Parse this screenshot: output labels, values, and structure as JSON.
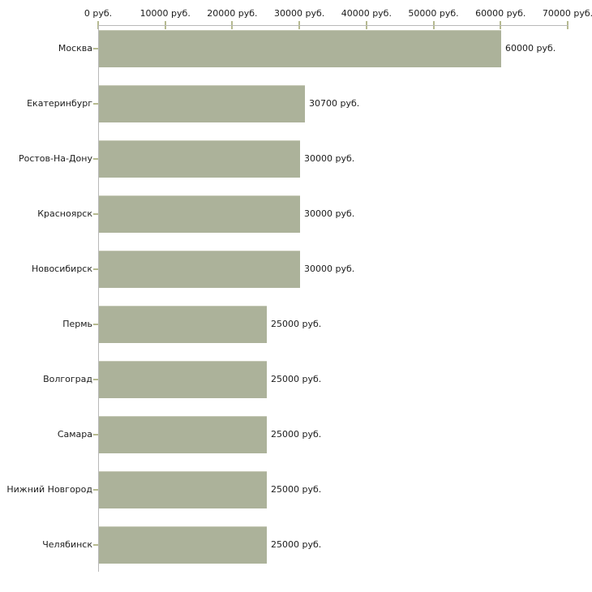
{
  "chart_data": {
    "type": "bar",
    "orientation": "horizontal",
    "title": "",
    "categories": [
      "Москва",
      "Екатеринбург",
      "Ростов-На-Дону",
      "Красноярск",
      "Новосибирск",
      "Пермь",
      "Волгоград",
      "Самара",
      "Нижний Новгород",
      "Челябинск"
    ],
    "values": [
      60000,
      30700,
      30000,
      30000,
      30000,
      25000,
      25000,
      25000,
      25000,
      25000
    ],
    "value_labels": [
      "60000 руб.",
      "30700 руб.",
      "30000 руб.",
      "30000 руб.",
      "30000 руб.",
      "25000 руб.",
      "25000 руб.",
      "25000 руб.",
      "25000 руб.",
      "25000 руб."
    ],
    "x_tick_values": [
      0,
      10000,
      20000,
      30000,
      40000,
      50000,
      60000,
      70000
    ],
    "x_tick_labels": [
      "0 руб.",
      "10000 руб.",
      "20000 руб.",
      "30000 руб.",
      "40000 руб.",
      "50000 руб.",
      "60000 руб.",
      "70000 руб."
    ],
    "xlim": [
      0,
      70000
    ],
    "unit": "руб.",
    "grid": false,
    "legend": null,
    "axis_position": "top",
    "colors": {
      "bar_fill": "#acb29a",
      "bar_top_edge": "#c6c9b6",
      "axis_line": "#b9b9b9",
      "tick_mark": "#b6ba90",
      "text": "#1c1c1c",
      "background": "#ffffff"
    }
  }
}
